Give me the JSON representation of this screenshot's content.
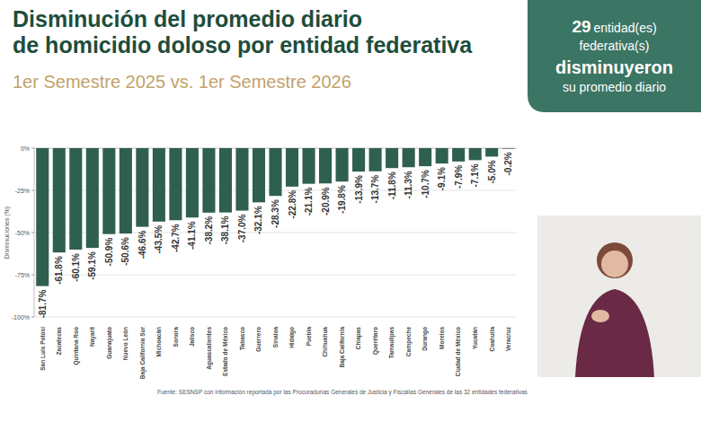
{
  "chart_data": {
    "type": "bar",
    "title": [
      "Disminución del promedio diario",
      "de homicidio doloso por entidad federativa"
    ],
    "subtitle": "1er Semestre 2025 vs. 1er Semestre 2026",
    "y_label": "Disminuciones (%)",
    "categories": [
      "San Luis Potosí",
      "Zacatecas",
      "Quintana Roo",
      "Nayarit",
      "Guanajuato",
      "Nuevo León",
      "Baja California Sur",
      "Michoacán",
      "Sonora",
      "Jalisco",
      "Aguascalientes",
      "Estado de México",
      "Tabasco",
      "Guerrero",
      "Sinaloa",
      "Hidalgo",
      "Puebla",
      "Chihuahua",
      "Baja California",
      "Chiapas",
      "Querétaro",
      "Tamaulipas",
      "Campeche",
      "Durango",
      "Morelos",
      "Ciudad de México",
      "Yucatán",
      "Coahuila",
      "Veracruz"
    ],
    "values": [
      -81.7,
      -61.8,
      -60.1,
      -59.1,
      -50.9,
      -50.6,
      -46.6,
      -43.5,
      -42.7,
      -41.1,
      -38.2,
      -38.1,
      -37.0,
      -32.1,
      -28.3,
      -22.8,
      -21.1,
      -20.9,
      -19.8,
      -13.9,
      -13.7,
      -11.8,
      -11.3,
      -10.7,
      -9.1,
      -7.9,
      -7.1,
      -5.0,
      -0.2
    ],
    "value_labels": [
      "-81.7%",
      "-61.8%",
      "-60.1%",
      "-59.1%",
      "-50.9%",
      "-50.6%",
      "-46.6%",
      "-43.5%",
      "-42.7%",
      "-41.1%",
      "-38.2%",
      "-38.1%",
      "-37.0%",
      "-32.1%",
      "-28.3%",
      "-22.8%",
      "-21.1%",
      "-20.9%",
      "-19.8%",
      "-13.9%",
      "-13.7%",
      "-11.8%",
      "-11.3%",
      "-10.7%",
      "-9.1%",
      "-7.9%",
      "-7.1%",
      "-5.0%",
      "-0.2%"
    ],
    "color": "#2f5f4f",
    "ylim": [
      -100,
      0
    ],
    "yticks": [
      {
        "value": -100,
        "label": "-100%"
      },
      {
        "value": -75,
        "label": "-75%"
      },
      {
        "value": -50,
        "label": "-50%"
      },
      {
        "value": -25,
        "label": "-25%"
      },
      {
        "value": 0,
        "label": "0%"
      }
    ],
    "grid": true,
    "data_labels": true,
    "callout": {
      "count": 29,
      "text": "entidad(es)",
      "lines": [
        "federativa(s)",
        "disminuyeron",
        "su promedio diario"
      ]
    },
    "source": "Fuente: SESNSP con información reportada por las Procuradurías Generales de Justicia y Fiscalías Generales de las 32 entidades federativas"
  }
}
